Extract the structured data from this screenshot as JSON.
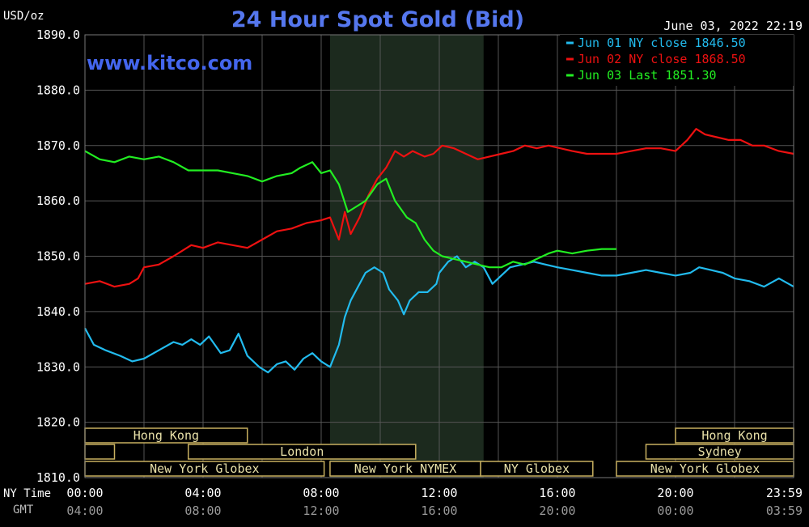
{
  "chart_data": {
    "type": "line",
    "title": "24 Hour Spot Gold (Bid)",
    "watermark": "www.kitco.com",
    "ylabel": "USD/oz",
    "timestamp": "June 03, 2022 22:19",
    "ylim": [
      1810,
      1890
    ],
    "y_ticks": [
      "1890.0",
      "1880.0",
      "1870.0",
      "1860.0",
      "1850.0",
      "1840.0",
      "1830.0",
      "1820.0",
      "1810.0"
    ],
    "x_label_ny": "NY Time",
    "x_label_gmt": "GMT",
    "x_ticks_ny": [
      "00:00",
      "04:00",
      "08:00",
      "12:00",
      "16:00",
      "20:00",
      "23:59"
    ],
    "x_ticks_gmt": [
      "04:00",
      "08:00",
      "12:00",
      "16:00",
      "20:00",
      "00:00",
      "03:59"
    ],
    "xlim_hours": [
      0,
      24
    ],
    "grid": true,
    "legend_position": "top-right",
    "colors": {
      "background": "#000000",
      "plot_background": "#000000",
      "shaded_session": "#1c2a1e",
      "grid": "#555555",
      "title": "#5577ee",
      "watermark": "#4466ee",
      "axis_text": "#ffffff",
      "gmt_text": "#999999",
      "session_border": "#c8b060",
      "session_text": "#e8e0a8"
    },
    "shaded_region_hours": [
      8.3,
      13.5
    ],
    "series": [
      {
        "name": "Jun 01 NY close 1846.50",
        "color": "#22bbee",
        "points": [
          [
            0,
            1837
          ],
          [
            0.3,
            1834
          ],
          [
            0.7,
            1833
          ],
          [
            1.2,
            1832
          ],
          [
            1.6,
            1831
          ],
          [
            2.0,
            1831.5
          ],
          [
            2.5,
            1833
          ],
          [
            3.0,
            1834.5
          ],
          [
            3.3,
            1834
          ],
          [
            3.6,
            1835
          ],
          [
            3.9,
            1834
          ],
          [
            4.2,
            1835.5
          ],
          [
            4.6,
            1832.5
          ],
          [
            4.9,
            1833
          ],
          [
            5.2,
            1836
          ],
          [
            5.5,
            1832
          ],
          [
            5.9,
            1830
          ],
          [
            6.2,
            1829
          ],
          [
            6.5,
            1830.5
          ],
          [
            6.8,
            1831
          ],
          [
            7.1,
            1829.5
          ],
          [
            7.4,
            1831.5
          ],
          [
            7.7,
            1832.5
          ],
          [
            8.0,
            1831
          ],
          [
            8.3,
            1830
          ],
          [
            8.6,
            1834
          ],
          [
            8.8,
            1839
          ],
          [
            9.0,
            1842
          ],
          [
            9.2,
            1844
          ],
          [
            9.5,
            1847
          ],
          [
            9.8,
            1848
          ],
          [
            10.1,
            1847
          ],
          [
            10.3,
            1844
          ],
          [
            10.6,
            1842
          ],
          [
            10.8,
            1839.5
          ],
          [
            11.0,
            1842
          ],
          [
            11.3,
            1843.5
          ],
          [
            11.6,
            1843.5
          ],
          [
            11.9,
            1845
          ],
          [
            12.0,
            1847
          ],
          [
            12.3,
            1849
          ],
          [
            12.6,
            1850
          ],
          [
            12.9,
            1848
          ],
          [
            13.2,
            1849
          ],
          [
            13.5,
            1848
          ],
          [
            13.8,
            1845
          ],
          [
            14.1,
            1846.5
          ],
          [
            14.4,
            1848
          ],
          [
            14.8,
            1848.5
          ],
          [
            15.2,
            1849
          ],
          [
            15.6,
            1848.5
          ],
          [
            16.0,
            1848
          ],
          [
            16.5,
            1847.5
          ],
          [
            17.0,
            1847
          ],
          [
            17.5,
            1846.5
          ],
          [
            18.0,
            1846.5
          ],
          [
            18.5,
            1847
          ],
          [
            19.0,
            1847.5
          ],
          [
            19.5,
            1847
          ],
          [
            20.0,
            1846.5
          ],
          [
            20.5,
            1847
          ],
          [
            20.8,
            1848
          ],
          [
            21.2,
            1847.5
          ],
          [
            21.6,
            1847
          ],
          [
            22.0,
            1846
          ],
          [
            22.5,
            1845.5
          ],
          [
            23.0,
            1844.5
          ],
          [
            23.5,
            1846
          ],
          [
            24.0,
            1844.5
          ]
        ]
      },
      {
        "name": "Jun 02 NY close 1868.50",
        "color": "#ee1111",
        "points": [
          [
            0,
            1845
          ],
          [
            0.5,
            1845.5
          ],
          [
            1.0,
            1844.5
          ],
          [
            1.5,
            1845
          ],
          [
            1.8,
            1846
          ],
          [
            2.0,
            1848
          ],
          [
            2.5,
            1848.5
          ],
          [
            3.0,
            1850
          ],
          [
            3.3,
            1851
          ],
          [
            3.6,
            1852
          ],
          [
            4.0,
            1851.5
          ],
          [
            4.5,
            1852.5
          ],
          [
            5.0,
            1852
          ],
          [
            5.5,
            1851.5
          ],
          [
            6.0,
            1853
          ],
          [
            6.5,
            1854.5
          ],
          [
            7.0,
            1855
          ],
          [
            7.5,
            1856
          ],
          [
            8.0,
            1856.5
          ],
          [
            8.3,
            1857
          ],
          [
            8.6,
            1853
          ],
          [
            8.8,
            1858
          ],
          [
            9.0,
            1854
          ],
          [
            9.3,
            1857
          ],
          [
            9.6,
            1861
          ],
          [
            9.9,
            1864
          ],
          [
            10.2,
            1866
          ],
          [
            10.5,
            1869
          ],
          [
            10.8,
            1868
          ],
          [
            11.1,
            1869
          ],
          [
            11.5,
            1868
          ],
          [
            11.8,
            1868.5
          ],
          [
            12.1,
            1870
          ],
          [
            12.5,
            1869.5
          ],
          [
            12.9,
            1868.5
          ],
          [
            13.3,
            1867.5
          ],
          [
            13.7,
            1868
          ],
          [
            14.1,
            1868.5
          ],
          [
            14.5,
            1869
          ],
          [
            14.9,
            1870
          ],
          [
            15.3,
            1869.5
          ],
          [
            15.7,
            1870
          ],
          [
            16.1,
            1869.5
          ],
          [
            16.5,
            1869
          ],
          [
            17.0,
            1868.5
          ],
          [
            17.5,
            1868.5
          ],
          [
            18.0,
            1868.5
          ],
          [
            18.5,
            1869
          ],
          [
            19.0,
            1869.5
          ],
          [
            19.5,
            1869.5
          ],
          [
            20.0,
            1869
          ],
          [
            20.4,
            1871
          ],
          [
            20.7,
            1873
          ],
          [
            21.0,
            1872
          ],
          [
            21.4,
            1871.5
          ],
          [
            21.8,
            1871
          ],
          [
            22.2,
            1871
          ],
          [
            22.6,
            1870
          ],
          [
            23.0,
            1870
          ],
          [
            23.5,
            1869
          ],
          [
            24.0,
            1868.5
          ]
        ]
      },
      {
        "name": "Jun 03 Last 1851.30",
        "color": "#22ee22",
        "points": [
          [
            0,
            1869
          ],
          [
            0.5,
            1867.5
          ],
          [
            1.0,
            1867
          ],
          [
            1.5,
            1868
          ],
          [
            2.0,
            1867.5
          ],
          [
            2.5,
            1868
          ],
          [
            3.0,
            1867
          ],
          [
            3.5,
            1865.5
          ],
          [
            4.0,
            1865.5
          ],
          [
            4.5,
            1865.5
          ],
          [
            5.0,
            1865
          ],
          [
            5.5,
            1864.5
          ],
          [
            6.0,
            1863.5
          ],
          [
            6.5,
            1864.5
          ],
          [
            7.0,
            1865
          ],
          [
            7.3,
            1866
          ],
          [
            7.7,
            1867
          ],
          [
            8.0,
            1865
          ],
          [
            8.3,
            1865.5
          ],
          [
            8.6,
            1863
          ],
          [
            8.9,
            1858
          ],
          [
            9.2,
            1859
          ],
          [
            9.5,
            1860
          ],
          [
            9.9,
            1863
          ],
          [
            10.2,
            1864
          ],
          [
            10.5,
            1860
          ],
          [
            10.9,
            1857
          ],
          [
            11.2,
            1856
          ],
          [
            11.5,
            1853
          ],
          [
            11.8,
            1851
          ],
          [
            12.1,
            1850
          ],
          [
            12.5,
            1849.5
          ],
          [
            12.9,
            1849
          ],
          [
            13.3,
            1848.5
          ],
          [
            13.7,
            1848
          ],
          [
            14.1,
            1848
          ],
          [
            14.5,
            1849
          ],
          [
            14.9,
            1848.5
          ],
          [
            15.3,
            1849.5
          ],
          [
            15.7,
            1850.5
          ],
          [
            16.0,
            1851
          ],
          [
            16.5,
            1850.5
          ],
          [
            17.0,
            1851
          ],
          [
            17.5,
            1851.3
          ],
          [
            18.0,
            1851.3
          ]
        ]
      }
    ],
    "sessions": [
      {
        "row": 0,
        "label": "Hong Kong",
        "start": 0,
        "end": 5.5,
        "open_left": false
      },
      {
        "row": 1,
        "label": "",
        "start": 0,
        "end": 1.0,
        "open_left": false
      },
      {
        "row": 1,
        "label": "London",
        "start": 3.5,
        "end": 11.2,
        "open_left": false
      },
      {
        "row": 2,
        "label": "New York Globex",
        "start": 0,
        "end": 8.1,
        "open_left": false
      },
      {
        "row": 2,
        "label": "New York NYMEX",
        "start": 8.3,
        "end": 13.4,
        "open_left": false
      },
      {
        "row": 2,
        "label": "NY Globex",
        "start": 13.4,
        "end": 17.2,
        "open_left": false
      },
      {
        "row": 0,
        "label": "Hong Kong",
        "start": 20.0,
        "end": 24.0,
        "open_left": false
      },
      {
        "row": 1,
        "label": "Sydney",
        "start": 19.0,
        "end": 24.0,
        "open_left": false
      },
      {
        "row": 2,
        "label": "New York Globex",
        "start": 18.0,
        "end": 24.0,
        "open_left": false
      }
    ]
  }
}
